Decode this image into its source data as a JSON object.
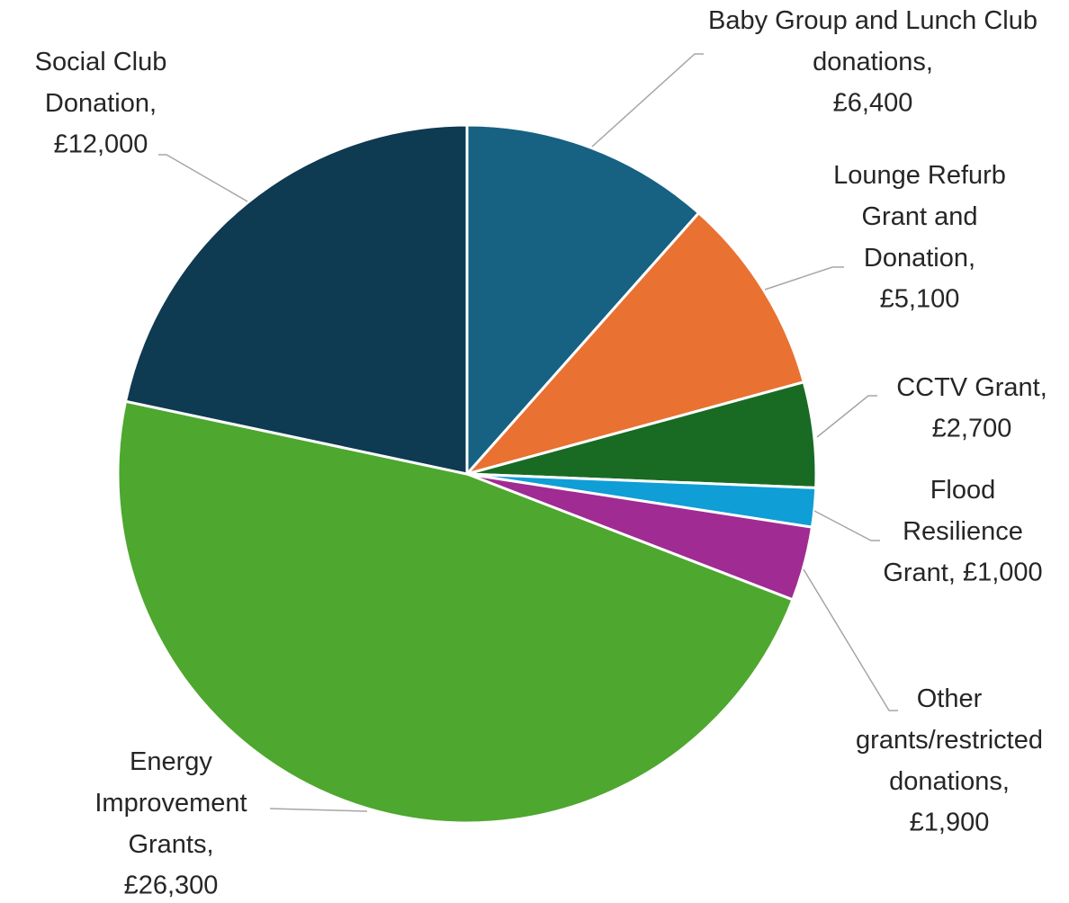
{
  "chart_data": {
    "type": "pie",
    "categories": [
      "Baby Group and Lunch Club donations,",
      "Lounge Refurb Grant and Donation,",
      "CCTV Grant,",
      "Flood Resilience Grant,",
      "Other grants/restricted donations,",
      "Energy Improvement Grants,",
      "Social Club Donation,"
    ],
    "values": [
      6400,
      5100,
      2700,
      1000,
      1900,
      26300,
      12000
    ],
    "value_labels": [
      "£6,400",
      "£5,100",
      "£2,700",
      "£1,000",
      "£1,900",
      "£26,300",
      "£12,000"
    ],
    "colors": [
      "#176183",
      "#e97132",
      "#196b24",
      "#0f9ed5",
      "#a02b93",
      "#4ea72e",
      "#0e3a52"
    ]
  }
}
